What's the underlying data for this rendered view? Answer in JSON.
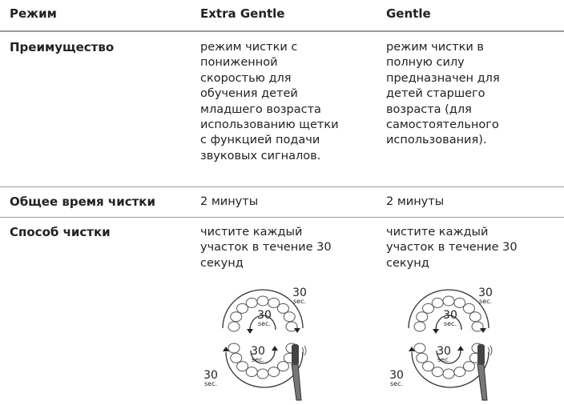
{
  "table": {
    "header": [
      "Режим",
      "Extra Gentle",
      "Gentle"
    ],
    "rows": [
      {
        "label": "Преимущество",
        "cells": [
          {
            "lines": [
              "режим чистки с",
              "пониженной",
              "скоростью для",
              "обучения детей",
              "младшего возраста",
              "использованию щетки",
              "с функцией подачи",
              "звуковых сигналов."
            ]
          },
          {
            "lines": [
              "режим чистки в",
              "полную силу",
              "предназначен для",
              "детей старшего",
              "возраста (для",
              "самостоятельного",
              "использования)."
            ]
          }
        ]
      },
      {
        "label": "Общее время чистки",
        "cells": [
          {
            "lines": [
              "2 минуты"
            ]
          },
          {
            "lines": [
              "2 минуты"
            ]
          }
        ]
      },
      {
        "label": "Способ чистки",
        "cells": [
          {
            "lines": [
              "чистите каждый",
              "участок в течение 30",
              "секунд"
            ]
          },
          {
            "lines": [
              "чистите каждый",
              "участок в течение 30",
              "секунд"
            ]
          }
        ]
      }
    ]
  },
  "brushing_diagram": {
    "time": "30",
    "unit": "sec."
  }
}
